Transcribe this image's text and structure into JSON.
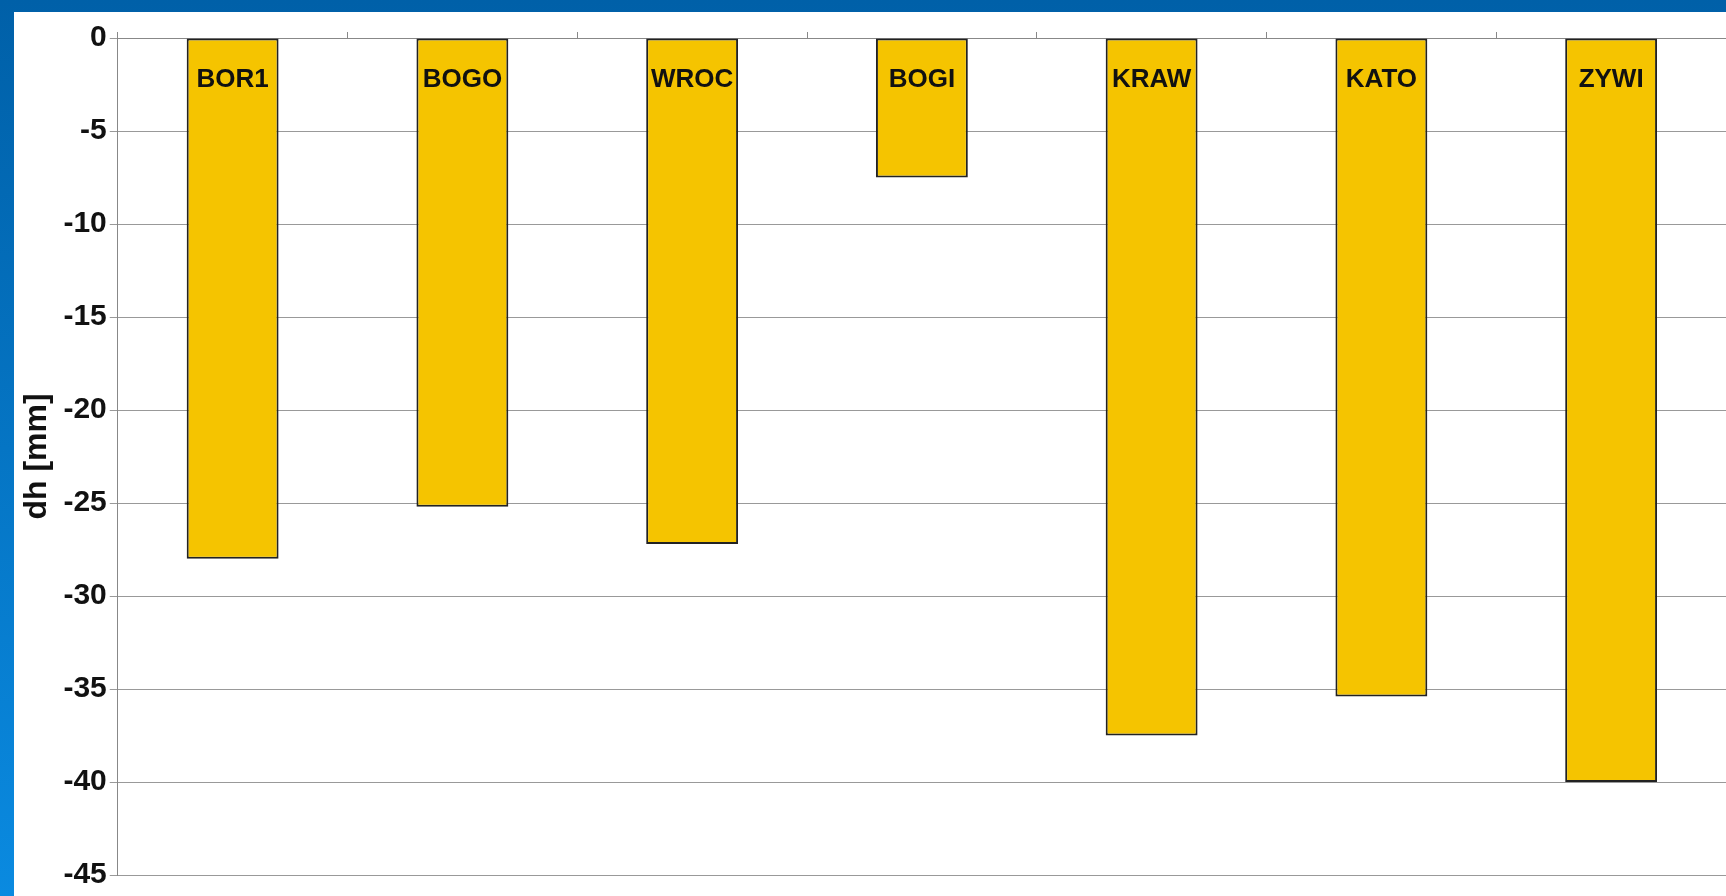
{
  "chart_data": {
    "type": "bar",
    "ylabel": "dh [mm]",
    "categories": [
      "BOR1",
      "BOGO",
      "WROC",
      "BOGI",
      "KRAW",
      "KATO",
      "ZYWI"
    ],
    "values": [
      -28,
      -25.2,
      -27.2,
      -7.5,
      -37.5,
      -35.4,
      -40
    ],
    "color": "#f5c400",
    "ylim": [
      -45,
      0
    ],
    "yticks": [
      0,
      -5,
      -10,
      -15,
      -20,
      -25,
      -30,
      -35,
      -40,
      -45
    ],
    "grid": "y",
    "legend": false
  }
}
